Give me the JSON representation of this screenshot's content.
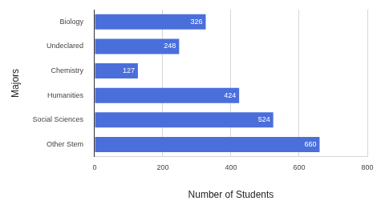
{
  "chart_data": {
    "type": "bar",
    "orientation": "horizontal",
    "categories": [
      "Biology",
      "Undeclared",
      "Chemistry",
      "Humanities",
      "Social Sciences",
      "Other Stem"
    ],
    "values": [
      326,
      248,
      127,
      424,
      524,
      660
    ],
    "color": "#4a6fdb",
    "x_label": "Number of Students",
    "y_label": "Majors",
    "xlim": [
      0,
      800
    ],
    "xticks": [
      0,
      200,
      400,
      600,
      800
    ],
    "grid": true,
    "data_labels": true
  }
}
